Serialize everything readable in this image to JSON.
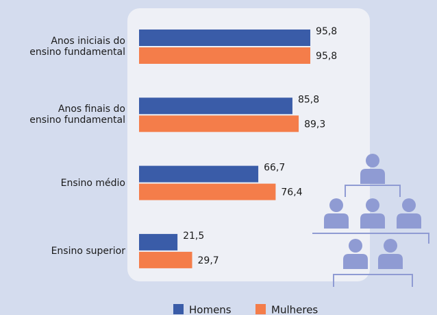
{
  "chart_data": {
    "type": "bar",
    "orientation": "horizontal",
    "categories": [
      "Anos iniciais do\nensino fundamental",
      "Anos finais do\nensino fundamental",
      "Ensino médio",
      "Ensino superior"
    ],
    "xlim": [
      0,
      100
    ],
    "series": [
      {
        "name": "Homens",
        "color": "#3a5ca8",
        "values": [
          95.8,
          85.8,
          66.7,
          21.5
        ],
        "value_labels": [
          "95,8",
          "85,8",
          "66,7",
          "21,5"
        ]
      },
      {
        "name": "Mulheres",
        "color": "#f47d4a",
        "values": [
          95.8,
          89.3,
          76.4,
          29.7
        ],
        "value_labels": [
          "95,8",
          "89,3",
          "76,4",
          "29,7"
        ]
      }
    ],
    "legend": "bottom"
  }
}
